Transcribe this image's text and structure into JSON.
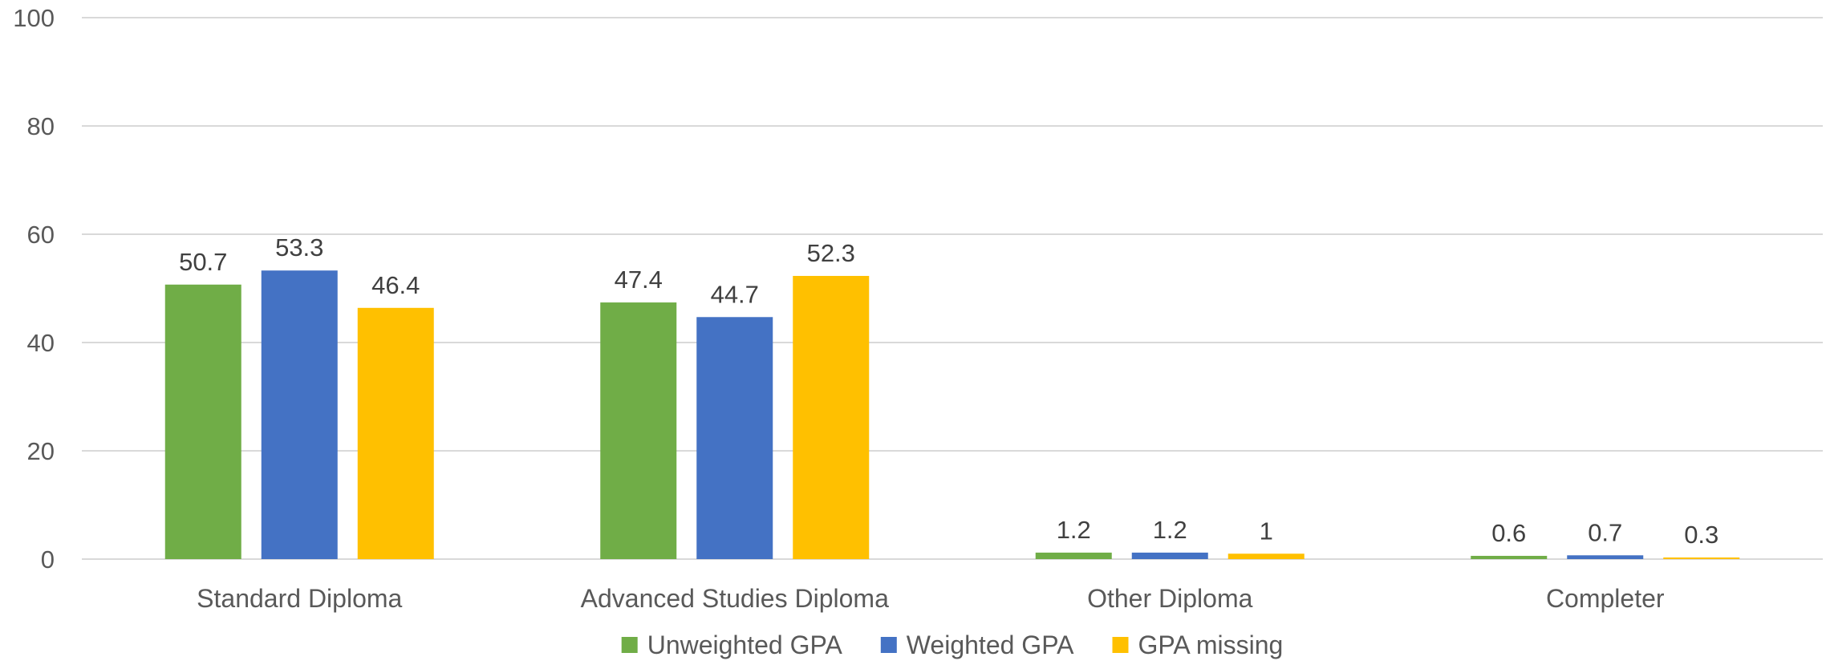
{
  "chart_data": {
    "type": "bar",
    "categories": [
      "Standard Diploma",
      "Advanced Studies Diploma",
      "Other Diploma",
      "Completer"
    ],
    "series": [
      {
        "name": "Unweighted GPA",
        "color": "#70ad47",
        "values": [
          50.7,
          47.4,
          1.2,
          0.6
        ],
        "labels": [
          "50.7",
          "47.4",
          "1.2",
          "0.6"
        ]
      },
      {
        "name": "Weighted GPA",
        "color": "#4472c4",
        "values": [
          53.3,
          44.7,
          1.2,
          0.7
        ],
        "labels": [
          "53.3",
          "44.7",
          "1.2",
          "0.7"
        ]
      },
      {
        "name": "GPA missing",
        "color": "#ffc000",
        "values": [
          46.4,
          52.3,
          1,
          0.3
        ],
        "labels": [
          "46.4",
          "52.3",
          "1",
          "0.3"
        ]
      }
    ],
    "ylim": [
      0,
      100
    ],
    "yticks": [
      "0",
      "20",
      "40",
      "60",
      "80",
      "100"
    ],
    "grid": true,
    "legend_position": "bottom"
  }
}
